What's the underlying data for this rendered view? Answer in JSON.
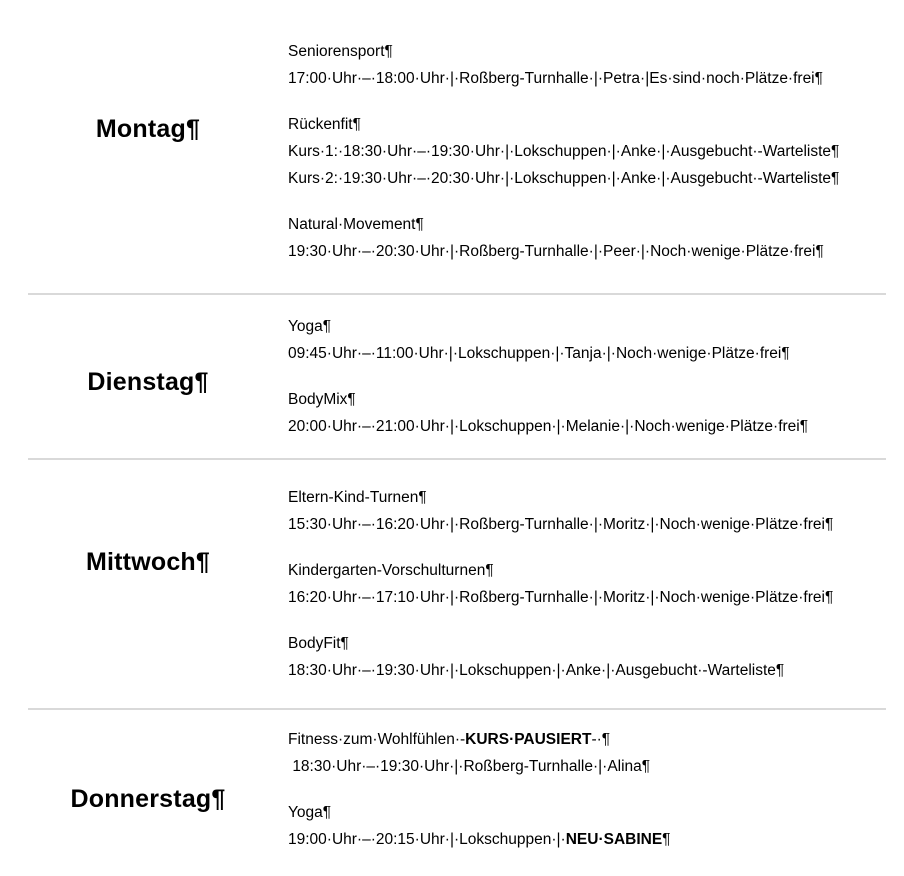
{
  "document": {
    "background_color": "#ffffff",
    "divider_color": "#d9d9d9",
    "text_color": "#000000",
    "formatting_marks": {
      "space_mark": "·",
      "paragraph_mark": "¶"
    },
    "days": [
      {
        "label": "Montag¶",
        "courses": [
          {
            "lines": [
              [
                {
                  "t": "Seniorensport¶"
                }
              ],
              [
                {
                  "t": "17:00·Uhr·–·18:00·Uhr·|·Roßberg-Turnhalle·|·Petra·|Es·sind·noch·Plätze·frei¶"
                }
              ]
            ]
          },
          {
            "lines": [
              [
                {
                  "t": "Rückenfit¶"
                }
              ],
              [
                {
                  "t": "Kurs·1:·18:30·Uhr·–·19:30·Uhr·|·Lokschuppen·|·Anke·|·Ausgebucht·-Warteliste¶"
                }
              ],
              [
                {
                  "t": "Kurs·2:·19:30·Uhr·–·20:30·Uhr·|·Lokschuppen·|·Anke·|·Ausgebucht·-Warteliste¶"
                }
              ]
            ]
          },
          {
            "lines": [
              [
                {
                  "t": "Natural·Movement¶"
                }
              ],
              [
                {
                  "t": "19:30·Uhr·–·20:30·Uhr·|·Roßberg-Turnhalle·|·Peer·|·Noch·wenige·Plätze·frei¶"
                }
              ]
            ]
          }
        ]
      },
      {
        "label": "Dienstag¶",
        "courses": [
          {
            "lines": [
              [
                {
                  "t": "Yoga¶"
                }
              ],
              [
                {
                  "t": "09:45·Uhr·–·11:00·Uhr·|·Lokschuppen·|·Tanja·|·Noch·wenige·Plätze·frei¶"
                }
              ]
            ]
          },
          {
            "lines": [
              [
                {
                  "t": "BodyMix¶"
                }
              ],
              [
                {
                  "t": "20:00·Uhr·–·21:00·Uhr·|·Lokschuppen·|·Melanie·|·Noch·wenige·Plätze·frei¶"
                }
              ]
            ]
          }
        ]
      },
      {
        "label": "Mittwoch¶",
        "courses": [
          {
            "lines": [
              [
                {
                  "t": "Eltern-Kind-Turnen¶"
                }
              ],
              [
                {
                  "t": "15:30·Uhr·–·16:20·Uhr·|·Roßberg-Turnhalle·|·Moritz·|·Noch·wenige·Plätze·frei¶"
                }
              ]
            ]
          },
          {
            "lines": [
              [
                {
                  "t": "Kindergarten-Vorschulturnen¶"
                }
              ],
              [
                {
                  "t": "16:20·Uhr·–·17:10·Uhr·|·Roßberg-Turnhalle·|·Moritz·|·Noch·wenige·Plätze·frei¶"
                }
              ]
            ]
          },
          {
            "lines": [
              [
                {
                  "t": "BodyFit¶"
                }
              ],
              [
                {
                  "t": "18:30·Uhr·–·19:30·Uhr·|·Lokschuppen·|·Anke·|·Ausgebucht·-Warteliste¶"
                }
              ]
            ]
          }
        ]
      },
      {
        "label": "Donnerstag¶",
        "courses": [
          {
            "lines": [
              [
                {
                  "t": "Fitness·zum·Wohlfühlen·-"
                },
                {
                  "t": "KURS·PAUSIERT",
                  "b": true
                },
                {
                  "t": "-·¶"
                }
              ],
              [
                {
                  "t": " 18:30·Uhr·–·19:30·Uhr·|·Roßberg-Turnhalle·|·Alina¶"
                }
              ]
            ]
          },
          {
            "lines": [
              [
                {
                  "t": "Yoga¶"
                }
              ],
              [
                {
                  "t": "19:00·Uhr·–·20:15·Uhr·|·Lokschuppen·|·"
                },
                {
                  "t": "NEU·SABINE",
                  "b": true
                },
                {
                  "t": "¶"
                }
              ]
            ]
          }
        ]
      }
    ]
  }
}
